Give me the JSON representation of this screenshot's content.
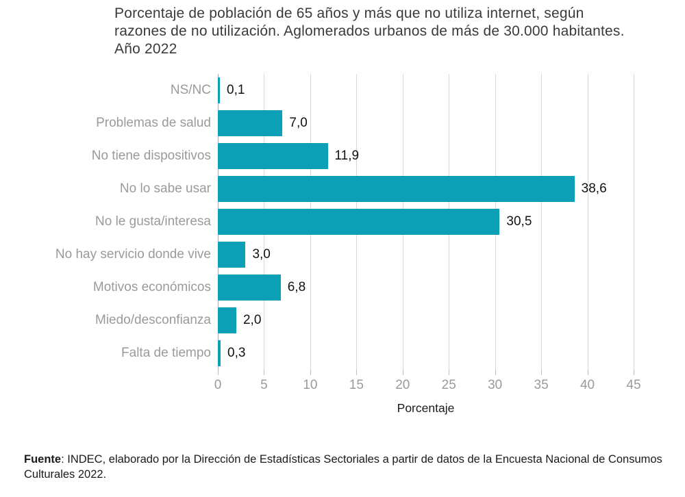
{
  "page": {
    "background_color": "#ffffff"
  },
  "chart_data": {
    "type": "bar",
    "orientation": "horizontal",
    "title": "Porcentaje de población de 65 años y más que no utiliza internet, según razones de no utilización. Aglomerados urbanos de más de 30.000 habitantes. Año 2022",
    "categories": [
      "NS/NC",
      "Problemas de salud",
      "No tiene dispositivos",
      "No lo sabe usar",
      "No le gusta/interesa",
      "No hay servicio donde vive",
      "Motivos económicos",
      "Miedo/desconfianza",
      "Falta de tiempo"
    ],
    "values": [
      0.1,
      7.0,
      11.9,
      38.6,
      30.5,
      3.0,
      6.8,
      2.0,
      0.3
    ],
    "value_labels": [
      "0,1",
      "7,0",
      "11,9",
      "38,6",
      "30,5",
      "3,0",
      "6,8",
      "2,0",
      "0,3"
    ],
    "xlabel": "Porcentaje",
    "xlim": [
      0,
      45
    ],
    "xticks": [
      0,
      5,
      10,
      15,
      20,
      25,
      30,
      35,
      40,
      45
    ],
    "grid": "vertical-only",
    "legend_position": "none",
    "bar_color": "#0ca0b6",
    "grid_color": "#d9d9d9",
    "zero_line_color": "#a9a9a9",
    "category_label_color": "#9a9a9a",
    "value_label_color": "#111111",
    "tick_label_color": "#9a9a9a"
  },
  "footer": {
    "source_label": "Fuente",
    "source_text": ": INDEC, elaborado por la Dirección de Estadísticas Sectoriales a partir de datos de la Encuesta Nacional de Consumos Culturales 2022."
  }
}
